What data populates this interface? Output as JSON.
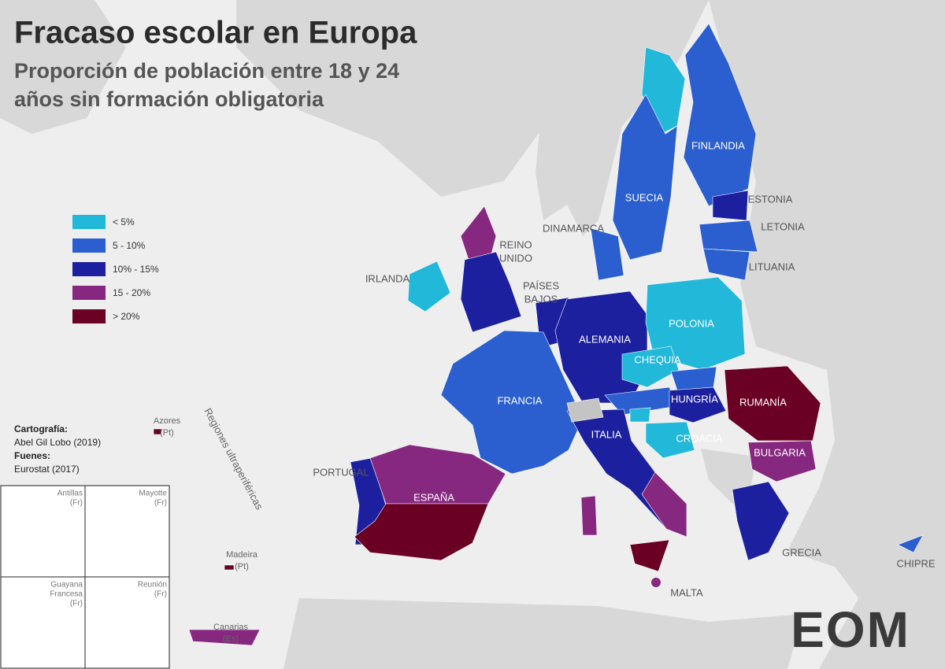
{
  "header": {
    "title": "Fracaso escolar en Europa",
    "subtitle": [
      "Proporción de población entre 18 y 24",
      "años sin formación obligatoria"
    ]
  },
  "legend": {
    "items": [
      {
        "label": "< 5%",
        "color": "#22b8d9"
      },
      {
        "label": "5 - 10%",
        "color": "#2b5fcf"
      },
      {
        "label": "10% - 15%",
        "color": "#1d209e"
      },
      {
        "label": "15 - 20%",
        "color": "#86287f"
      },
      {
        "label": "> 20%",
        "color": "#6a0023"
      }
    ]
  },
  "credits": {
    "cartography_label": "Cartografía:",
    "cartography": "Abel Gil Lobo (2019)",
    "sources_label": "Fuenes:",
    "sources": "Eurostat (2017)"
  },
  "countries": [
    "FINLANDIA",
    "SUECIA",
    "ESTONIA",
    "LETONIA",
    "LITUANIA",
    "DINAMARCA",
    "REINO",
    "UNIDO",
    "IRLANDA",
    "PAÍSES",
    "BAJOS",
    "POLONIA",
    "ALEMANIA",
    "CHEQUIA",
    "FRANCIA",
    "HUNGRÍA",
    "RUMANÍA",
    "CROACIA",
    "BULGARIA",
    "ITALIA",
    "PORTUGAL",
    "ESPAÑA",
    "GRECIA",
    "CHIPRE",
    "MALTA"
  ],
  "outermost": {
    "title": "Regiones ultraperiféricas",
    "places": [
      "Azores",
      "(Pt)",
      "Madeira",
      "(Pt)",
      "Canarias",
      "(Es)"
    ]
  },
  "insets": [
    [
      "Antillas",
      "(Fr)"
    ],
    [
      "Mayotte",
      "(Fr)"
    ],
    [
      "Guayana",
      "Francesa",
      "(Fr)"
    ],
    [
      "Reunión",
      "(Fr)"
    ]
  ],
  "logo": "EOM"
}
